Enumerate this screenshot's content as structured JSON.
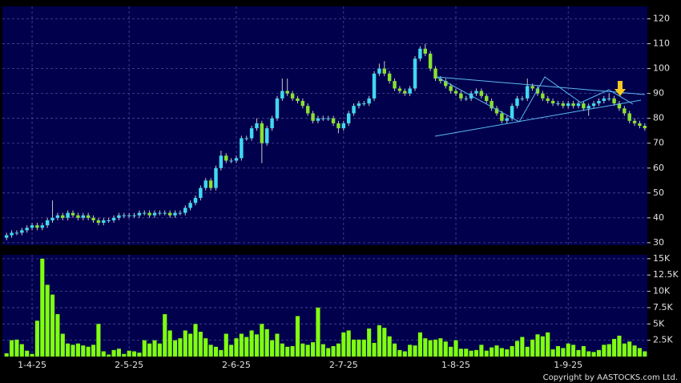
{
  "chart_data": [
    {
      "type": "candlestick",
      "categories": [
        null,
        null,
        null,
        null,
        null,
        "1-4-25",
        null,
        null,
        null,
        null,
        null,
        null,
        null,
        null,
        null,
        null,
        null,
        null,
        null,
        null,
        null,
        null,
        null,
        null,
        "2-5-25",
        null,
        null,
        null,
        null,
        null,
        null,
        null,
        null,
        null,
        null,
        null,
        null,
        null,
        null,
        null,
        null,
        null,
        null,
        null,
        null,
        "2-6-25",
        null,
        null,
        null,
        null,
        null,
        null,
        null,
        null,
        null,
        null,
        null,
        null,
        null,
        null,
        null,
        null,
        null,
        null,
        null,
        null,
        "2-7-25",
        null,
        null,
        null,
        null,
        null,
        null,
        null,
        null,
        null,
        null,
        null,
        null,
        null,
        null,
        null,
        null,
        null,
        null,
        null,
        null,
        null,
        "1-8-25",
        null,
        null,
        null,
        null,
        null,
        null,
        null,
        null,
        null,
        null,
        null,
        null,
        null,
        null,
        null,
        null,
        null,
        null,
        null,
        null,
        null,
        "1-9-25",
        null,
        null,
        null,
        null,
        null,
        null,
        null,
        null,
        null,
        null,
        null,
        null,
        null,
        null,
        null
      ],
      "open": [
        32,
        33,
        34,
        34,
        35,
        36,
        37,
        36,
        37,
        39,
        40,
        41,
        40,
        42,
        41,
        40,
        41,
        40,
        39,
        38,
        39,
        39,
        40,
        41,
        41,
        41,
        41,
        42,
        42,
        41,
        42,
        42,
        42,
        41,
        42,
        42,
        44,
        46,
        48,
        52,
        55,
        52,
        60,
        65,
        63,
        63,
        64,
        72,
        72,
        76,
        78,
        70,
        76,
        80,
        88,
        91,
        90,
        88,
        87,
        85,
        82,
        79,
        80,
        80,
        80,
        78,
        76,
        78,
        82,
        85,
        86,
        86,
        88,
        98,
        100,
        98,
        95,
        92,
        91,
        90,
        92,
        104,
        108,
        106,
        100,
        96,
        95,
        93,
        91,
        90,
        88,
        88,
        90,
        91,
        89,
        87,
        84,
        82,
        79,
        80,
        85,
        88,
        88,
        93,
        92,
        90,
        88,
        87,
        86,
        86,
        85,
        86,
        85,
        86,
        84,
        85,
        86,
        87,
        88,
        88,
        86,
        84,
        82,
        79,
        78,
        77
      ],
      "high": [
        34,
        35,
        35,
        36,
        37,
        38,
        38,
        38,
        40,
        47,
        42,
        42,
        43,
        43,
        42,
        42,
        42,
        41,
        40,
        40,
        40,
        41,
        42,
        42,
        42,
        42,
        43,
        43,
        43,
        43,
        43,
        43,
        43,
        43,
        43,
        45,
        47,
        49,
        53,
        56,
        56,
        61,
        67,
        66,
        64,
        65,
        73,
        73,
        77,
        80,
        79,
        77,
        81,
        89,
        96,
        96,
        91,
        89,
        88,
        86,
        83,
        81,
        81,
        81,
        81,
        79,
        79,
        83,
        86,
        87,
        87,
        89,
        99,
        102,
        103,
        99,
        96,
        93,
        92,
        93,
        105,
        109,
        110,
        107,
        101,
        97,
        96,
        94,
        92,
        91,
        89,
        91,
        92,
        92,
        90,
        88,
        85,
        83,
        81,
        86,
        89,
        89,
        96,
        94,
        93,
        91,
        89,
        88,
        87,
        87,
        87,
        87,
        87,
        87,
        86,
        87,
        88,
        89,
        90,
        89,
        87,
        85,
        83,
        80,
        79,
        78
      ],
      "low": [
        31,
        32,
        33,
        33,
        34,
        35,
        35,
        35,
        36,
        38,
        39,
        39,
        39,
        40,
        39,
        39,
        39,
        38,
        37,
        37,
        38,
        38,
        39,
        40,
        40,
        40,
        40,
        41,
        40,
        40,
        41,
        41,
        40,
        40,
        41,
        41,
        43,
        45,
        47,
        51,
        51,
        51,
        59,
        62,
        62,
        62,
        63,
        71,
        71,
        75,
        62,
        69,
        75,
        79,
        87,
        89,
        87,
        86,
        84,
        81,
        78,
        78,
        79,
        79,
        77,
        74,
        75,
        77,
        81,
        84,
        85,
        85,
        87,
        97,
        97,
        94,
        91,
        90,
        89,
        89,
        91,
        103,
        105,
        99,
        95,
        94,
        92,
        90,
        89,
        87,
        87,
        87,
        89,
        88,
        86,
        83,
        81,
        78,
        78,
        79,
        84,
        87,
        87,
        91,
        89,
        87,
        86,
        85,
        85,
        84,
        84,
        84,
        84,
        83,
        81,
        84,
        85,
        86,
        87,
        85,
        83,
        81,
        78,
        77,
        76,
        75
      ],
      "close": [
        33,
        34,
        34,
        35,
        36,
        37,
        36,
        37,
        39,
        40,
        41,
        40,
        42,
        41,
        40,
        41,
        40,
        39,
        38,
        39,
        39,
        40,
        41,
        41,
        41,
        41,
        42,
        42,
        41,
        42,
        42,
        42,
        41,
        42,
        42,
        44,
        46,
        48,
        52,
        55,
        52,
        60,
        65,
        63,
        63,
        64,
        72,
        72,
        76,
        78,
        70,
        76,
        80,
        88,
        91,
        90,
        88,
        87,
        85,
        82,
        79,
        80,
        80,
        80,
        78,
        76,
        78,
        82,
        85,
        86,
        86,
        88,
        98,
        100,
        98,
        95,
        92,
        91,
        90,
        92,
        104,
        108,
        106,
        100,
        96,
        95,
        93,
        91,
        90,
        88,
        88,
        90,
        91,
        89,
        87,
        84,
        82,
        79,
        80,
        85,
        88,
        88,
        93,
        92,
        90,
        88,
        87,
        86,
        86,
        85,
        86,
        85,
        86,
        84,
        85,
        86,
        87,
        88,
        88,
        86,
        84,
        82,
        79,
        78,
        77,
        76
      ],
      "up_color": "#40d8f0",
      "down_color": "#88e030",
      "ylim": [
        29,
        125
      ],
      "yticks": [
        30,
        40,
        50,
        60,
        70,
        80,
        90,
        100,
        110,
        120
      ],
      "grid": true
    },
    {
      "type": "bar",
      "values": [
        500,
        2500,
        2600,
        1900,
        900,
        400,
        5500,
        15000,
        11000,
        9500,
        6500,
        3500,
        2000,
        1800,
        2000,
        1700,
        1500,
        1800,
        5000,
        800,
        300,
        1000,
        1200,
        400,
        900,
        800,
        600,
        2500,
        2000,
        2500,
        2000,
        6500,
        4000,
        2500,
        2800,
        4000,
        3500,
        5000,
        3800,
        2800,
        1800,
        1500,
        1000,
        3500,
        1800,
        2800,
        3500,
        3000,
        4000,
        3400,
        5000,
        4200,
        2500,
        3500,
        2000,
        1500,
        1600,
        6200,
        2000,
        1800,
        2200,
        7500,
        1900,
        1300,
        1600,
        2000,
        3700,
        4000,
        2600,
        2600,
        2600,
        4300,
        2100,
        4800,
        4400,
        3100,
        2000,
        1000,
        800,
        1800,
        1700,
        3700,
        2800,
        2500,
        2600,
        2800,
        2300,
        1500,
        2500,
        1200,
        1200,
        900,
        1000,
        1800,
        900,
        1400,
        1700,
        1300,
        1100,
        1600,
        2400,
        3000,
        1500,
        2600,
        3400,
        3100,
        3700,
        1100,
        1600,
        1300,
        2000,
        1800,
        1000,
        1600,
        800,
        700,
        1000,
        1800,
        1900,
        2700,
        3200,
        2000,
        2300,
        1700,
        1300,
        800
      ],
      "color": "#80ff10",
      "ylim": [
        0,
        15600
      ],
      "yticks": [
        {
          "value": 2500,
          "label": "2.5K"
        },
        {
          "value": 5000,
          "label": "5K"
        },
        {
          "value": 7500,
          "label": "7.5K"
        },
        {
          "value": 10000,
          "label": "10K"
        },
        {
          "value": 12500,
          "label": "12.5K"
        },
        {
          "value": 15000,
          "label": "15K"
        }
      ],
      "grid": true
    }
  ],
  "footer": {
    "copyright": "Copyright by AASTOCKS.com Ltd."
  }
}
